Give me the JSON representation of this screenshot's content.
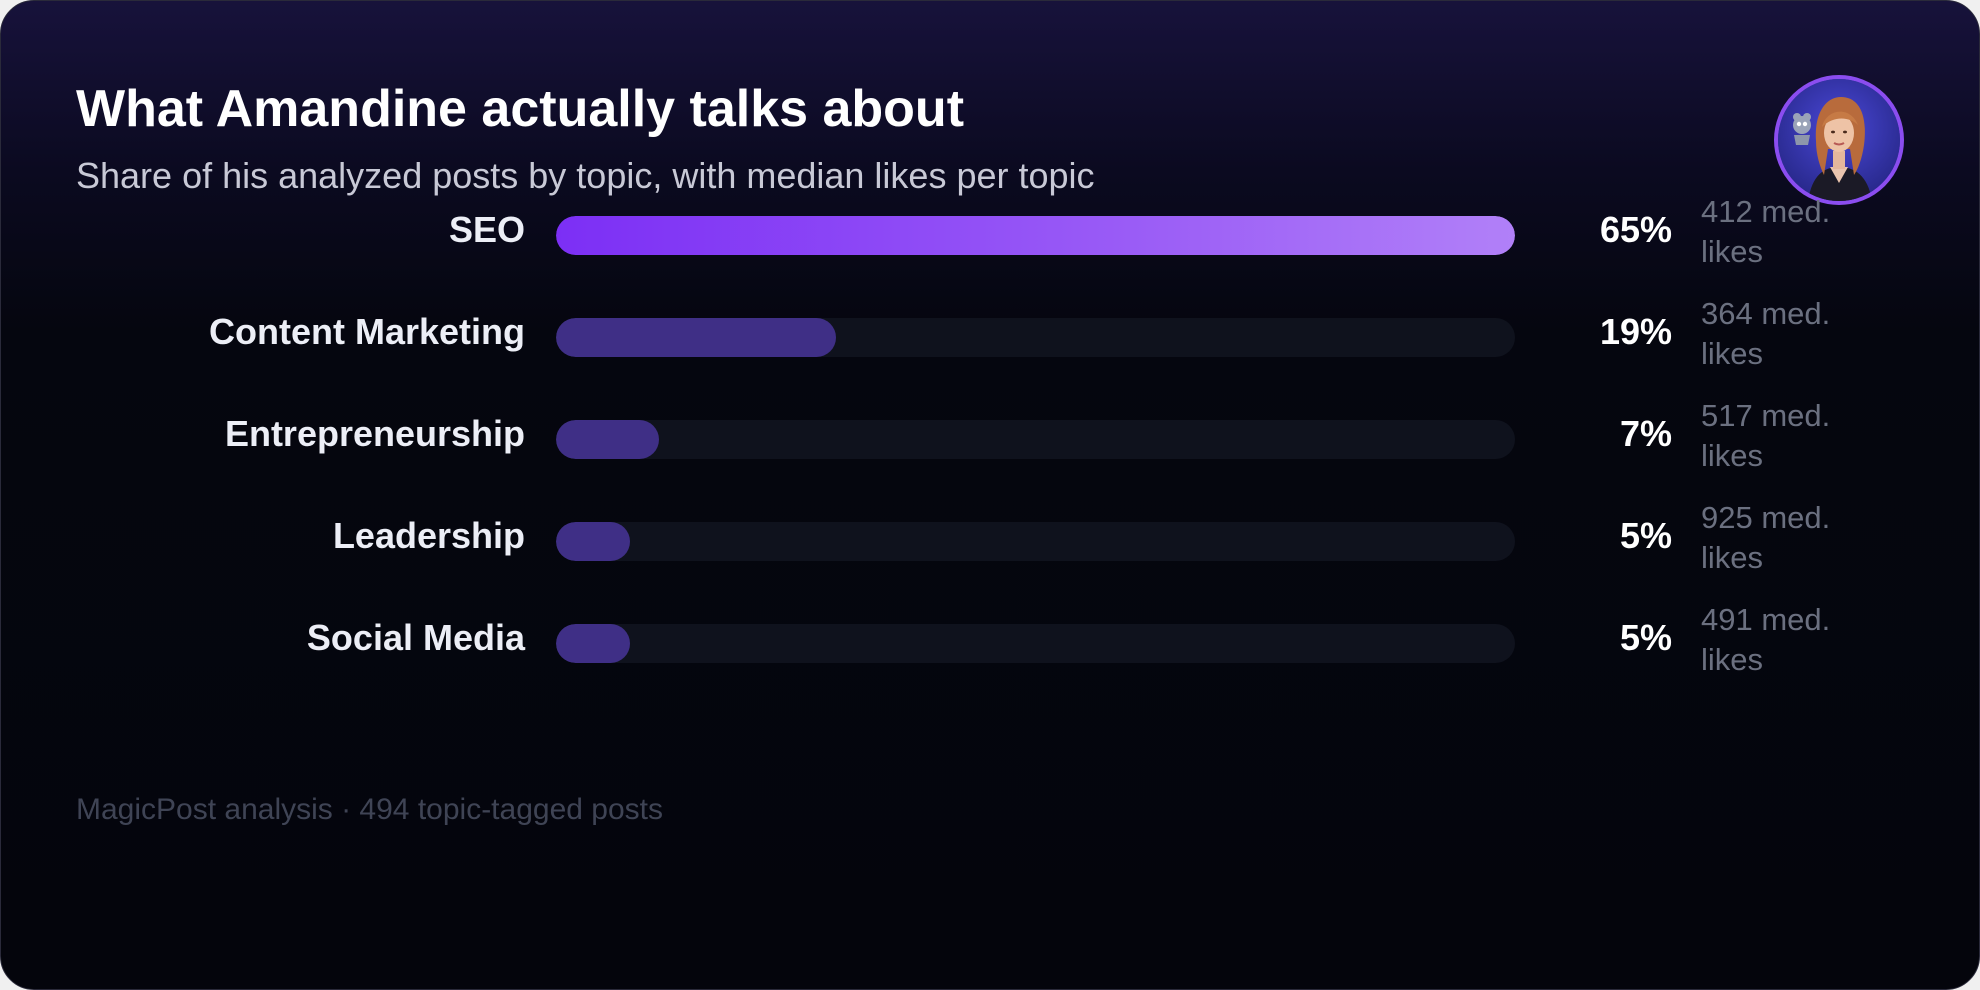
{
  "title": "What Amandine actually talks about",
  "subtitle": "Share of his analyzed posts by topic, with median likes per topic",
  "footer": "MagicPost analysis · 494 topic-tagged posts",
  "colors": {
    "top_bar_start": "#7c2ff5",
    "top_bar_end": "#b180f8",
    "bar": "#3f2f86",
    "track": "#0f121d",
    "background": "#05060f"
  },
  "chart_data": {
    "type": "bar",
    "orientation": "horizontal",
    "title": "What Amandine actually talks about",
    "subtitle": "Share of his analyzed posts by topic, with median likes per topic",
    "categories": [
      "SEO",
      "Content Marketing",
      "Entrepreneurship",
      "Leadership",
      "Social Media"
    ],
    "values": [
      65,
      19,
      7,
      5,
      5
    ],
    "value_labels": [
      "65%",
      "19%",
      "7%",
      "5%",
      "5%"
    ],
    "median_likes": [
      412,
      364,
      517,
      925,
      491
    ],
    "median_likes_labels": [
      "412 med. likes",
      "364 med. likes",
      "517 med. likes",
      "925 med. likes",
      "491 med. likes"
    ],
    "xlim": [
      0,
      65
    ],
    "grid": false,
    "legend": "none"
  }
}
